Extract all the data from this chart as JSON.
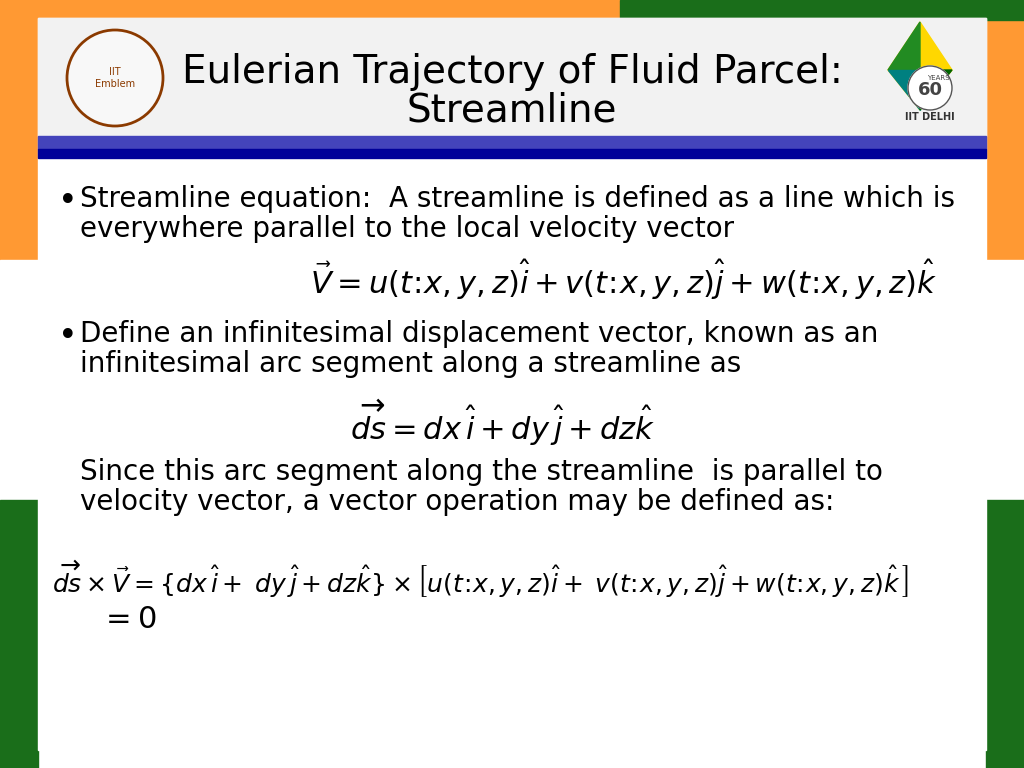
{
  "title_line1": "Eulerian Trajectory of Fluid Parcel:",
  "title_line2": "Streamline",
  "bullet1_text1": "Streamline equation:  A streamline is defined as a line which is",
  "bullet1_text2": "everywhere parallel to the local velocity vector",
  "bullet2_text1": "Define an infinitesimal displacement vector, known as an",
  "bullet2_text2": "infinitesimal arc segment along a streamline as",
  "para_text1": "Since this arc segment along the streamline  is parallel to",
  "para_text2": "velocity vector, a vector operation may be defined as:",
  "eq3_line2": "=0",
  "text_color": "#000000",
  "title_font_size": 28,
  "body_font_size": 20,
  "eq_font_size": 22,
  "orange_color": "#FF9933",
  "green_color": "#1a6e1a",
  "blue_line1": "#4444CC",
  "blue_line2": "#0000AA",
  "white": "#FFFFFF",
  "header_bg": "#f0f0f0"
}
